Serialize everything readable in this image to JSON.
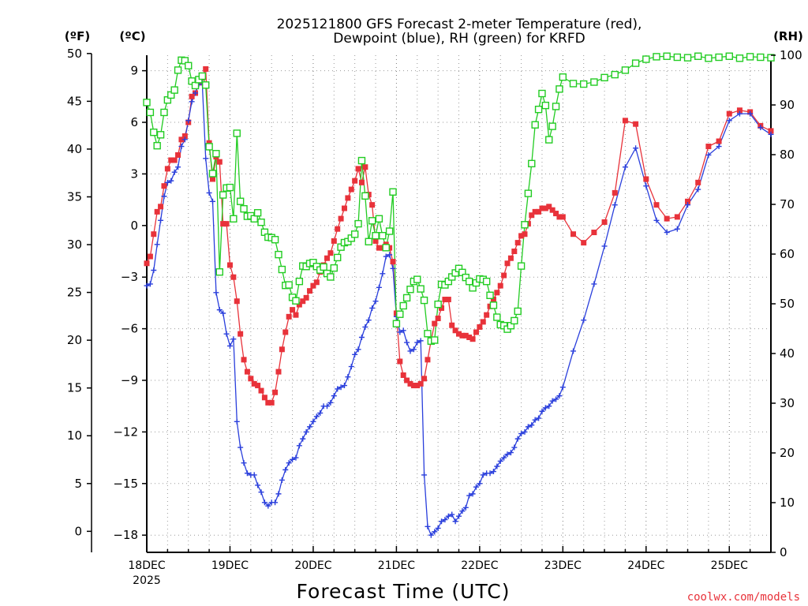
{
  "chart_data": {
    "type": "line",
    "title_line1": "2025121800 GFS Forecast 2-meter Temperature (red),",
    "title_line2": "Dewpoint (blue), RH (green) for KRFD",
    "unit_f": "(ºF)",
    "unit_c": "(ºC)",
    "unit_rh": "(RH)",
    "xlabel": "Forecast Time (UTC)",
    "credit": "coolwx.com/models",
    "x_unit": "hours since 2025-12-18 00Z",
    "xlim": [
      0,
      180
    ],
    "ylim_c": [
      -19,
      10
    ],
    "ylim_f": [
      -2.2,
      50
    ],
    "ylim_rh": [
      0,
      100
    ],
    "x_ticks": [
      {
        "hour": 0,
        "label": "18DEC",
        "sublabel": "2025"
      },
      {
        "hour": 24,
        "label": "19DEC",
        "sublabel": ""
      },
      {
        "hour": 48,
        "label": "20DEC",
        "sublabel": ""
      },
      {
        "hour": 72,
        "label": "21DEC",
        "sublabel": ""
      },
      {
        "hour": 96,
        "label": "22DEC",
        "sublabel": ""
      },
      {
        "hour": 120,
        "label": "23DEC",
        "sublabel": ""
      },
      {
        "hour": 144,
        "label": "24DEC",
        "sublabel": ""
      },
      {
        "hour": 168,
        "label": "25DEC",
        "sublabel": ""
      }
    ],
    "y_ticks_c": [
      {
        "v": 9,
        "label": "9"
      },
      {
        "v": 6,
        "label": "6"
      },
      {
        "v": 3,
        "label": "3"
      },
      {
        "v": 0,
        "label": "0"
      },
      {
        "v": -3,
        "label": "−3"
      },
      {
        "v": -6,
        "label": "−6"
      },
      {
        "v": -9,
        "label": "−9"
      },
      {
        "v": -12,
        "label": "−12"
      },
      {
        "v": -15,
        "label": "−15"
      },
      {
        "v": -18,
        "label": "−18"
      }
    ],
    "y_ticks_f": [
      {
        "v": 50,
        "label": "50"
      },
      {
        "v": 45,
        "label": "45"
      },
      {
        "v": 40,
        "label": "40"
      },
      {
        "v": 35,
        "label": "35"
      },
      {
        "v": 30,
        "label": "30"
      },
      {
        "v": 25,
        "label": "25"
      },
      {
        "v": 20,
        "label": "20"
      },
      {
        "v": 15,
        "label": "15"
      },
      {
        "v": 10,
        "label": "10"
      },
      {
        "v": 5,
        "label": "5"
      },
      {
        "v": 0,
        "label": "0"
      }
    ],
    "y_ticks_rh": [
      {
        "v": 100,
        "label": "100"
      },
      {
        "v": 90,
        "label": "90"
      },
      {
        "v": 80,
        "label": "80"
      },
      {
        "v": 70,
        "label": "70"
      },
      {
        "v": 60,
        "label": "60"
      },
      {
        "v": 50,
        "label": "50"
      },
      {
        "v": 40,
        "label": "40"
      },
      {
        "v": 30,
        "label": "30"
      },
      {
        "v": 20,
        "label": "20"
      },
      {
        "v": 10,
        "label": "10"
      },
      {
        "v": 0,
        "label": "0"
      }
    ],
    "series": [
      {
        "name": "2-meter Temperature (°C)",
        "axis": "c",
        "color": "#e8323a",
        "marker": "square-filled",
        "x": [
          0,
          1,
          2,
          3,
          4,
          5,
          6,
          7,
          8,
          9,
          10,
          11,
          12,
          13,
          14,
          15,
          16,
          17,
          18,
          19,
          20,
          21,
          22,
          23,
          24,
          25,
          26,
          27,
          28,
          29,
          30,
          31,
          32,
          33,
          34,
          35,
          36,
          37,
          38,
          39,
          40,
          41,
          42,
          43,
          44,
          45,
          46,
          47,
          48,
          49,
          50,
          51,
          52,
          53,
          54,
          55,
          56,
          57,
          58,
          59,
          60,
          61,
          62,
          63,
          64,
          65,
          66,
          67,
          68,
          69,
          70,
          71,
          72,
          73,
          74,
          75,
          76,
          77,
          78,
          79,
          80,
          81,
          82,
          83,
          84,
          85,
          86,
          87,
          88,
          89,
          90,
          91,
          92,
          93,
          94,
          95,
          96,
          97,
          98,
          99,
          100,
          101,
          102,
          103,
          104,
          105,
          106,
          107,
          108,
          109,
          110,
          111,
          112,
          113,
          114,
          115,
          116,
          117,
          118,
          119,
          120,
          123,
          126,
          129,
          132,
          135,
          138,
          141,
          144,
          147,
          150,
          153,
          156,
          159,
          162,
          165,
          168,
          171,
          174,
          177,
          180
        ],
        "values": [
          -2.2,
          -1.8,
          -0.5,
          0.8,
          1.1,
          2.3,
          3.3,
          3.8,
          3.8,
          4.1,
          5,
          5.2,
          6,
          7.5,
          7.7,
          8.3,
          8.6,
          9.1,
          4.8,
          2.7,
          4,
          3.7,
          0.1,
          0.1,
          -2.3,
          -3,
          -4.4,
          -6.3,
          -7.8,
          -8.5,
          -8.9,
          -9.2,
          -9.3,
          -9.6,
          -10,
          -10.3,
          -10.3,
          -9.7,
          -8.5,
          -7.2,
          -6.2,
          -5.3,
          -4.9,
          -5.2,
          -4.6,
          -4.4,
          -4.2,
          -3.8,
          -3.5,
          -3.3,
          -2.7,
          -2.3,
          -1.9,
          -1.6,
          -0.9,
          -0.2,
          0.4,
          1,
          1.6,
          2.1,
          2.6,
          3.3,
          2.5,
          3.4,
          1.8,
          1.2,
          -0.9,
          -1.3,
          -1.3,
          -1.1,
          -1.3,
          -2.1,
          -5.1,
          -7.9,
          -8.7,
          -9,
          -9.2,
          -9.3,
          -9.3,
          -9.2,
          -8.9,
          -7.8,
          -6.7,
          -5.7,
          -5.4,
          -4.8,
          -4.3,
          -4.3,
          -5.8,
          -6.1,
          -6.3,
          -6.4,
          -6.4,
          -6.5,
          -6.6,
          -6.2,
          -5.9,
          -5.6,
          -5.2,
          -4.7,
          -4.3,
          -3.9,
          -3.5,
          -2.9,
          -2.2,
          -1.9,
          -1.5,
          -1,
          -0.6,
          -0.5,
          0.1,
          0.6,
          0.8,
          0.8,
          1,
          1,
          1.1,
          0.9,
          0.7,
          0.5,
          0.5,
          -0.5,
          -1,
          -0.4,
          0.2,
          1.9,
          6.1,
          5.9,
          2.7,
          1.2,
          0.4,
          0.5,
          1.4,
          2.5,
          4.6,
          4.9,
          6.5,
          6.7,
          6.6,
          5.8,
          5.5
        ]
      },
      {
        "name": "Dewpoint (°C)",
        "axis": "c",
        "color": "#2a3fdc",
        "marker": "plus",
        "x": [
          0,
          1,
          2,
          3,
          4,
          5,
          6,
          7,
          8,
          9,
          10,
          11,
          12,
          13,
          14,
          15,
          16,
          17,
          18,
          19,
          20,
          21,
          22,
          23,
          24,
          25,
          26,
          27,
          28,
          29,
          30,
          31,
          32,
          33,
          34,
          35,
          36,
          37,
          38,
          39,
          40,
          41,
          42,
          43,
          44,
          45,
          46,
          47,
          48,
          49,
          50,
          51,
          52,
          53,
          54,
          55,
          56,
          57,
          58,
          59,
          60,
          61,
          62,
          63,
          64,
          65,
          66,
          67,
          68,
          69,
          70,
          71,
          72,
          73,
          74,
          75,
          76,
          77,
          78,
          79,
          80,
          81,
          82,
          83,
          84,
          85,
          86,
          87,
          88,
          89,
          90,
          91,
          92,
          93,
          94,
          95,
          96,
          97,
          98,
          99,
          100,
          101,
          102,
          103,
          104,
          105,
          106,
          107,
          108,
          109,
          110,
          111,
          112,
          113,
          114,
          115,
          116,
          117,
          118,
          119,
          120,
          123,
          126,
          129,
          132,
          135,
          138,
          141,
          144,
          147,
          150,
          153,
          156,
          159,
          162,
          165,
          168,
          171,
          174,
          177,
          180
        ],
        "values": [
          -3.5,
          -3.4,
          -2.6,
          -1.1,
          0.3,
          1.7,
          2.5,
          2.6,
          3.1,
          3.4,
          4.6,
          5,
          6.1,
          7.2,
          7.7,
          8.2,
          8.3,
          3.9,
          1.9,
          1.4,
          -3.9,
          -4.9,
          -5.1,
          -6.3,
          -7,
          -6.6,
          -11.4,
          -12.9,
          -13.8,
          -14.4,
          -14.5,
          -14.5,
          -15.1,
          -15.5,
          -16.1,
          -16.3,
          -16.1,
          -16.1,
          -15.6,
          -14.8,
          -14.2,
          -13.8,
          -13.6,
          -13.5,
          -12.8,
          -12.4,
          -12,
          -11.7,
          -11.4,
          -11.1,
          -10.9,
          -10.5,
          -10.5,
          -10.3,
          -9.9,
          -9.5,
          -9.4,
          -9.3,
          -8.8,
          -8.2,
          -7.5,
          -7.2,
          -6.5,
          -5.9,
          -5.5,
          -4.8,
          -4.4,
          -3.6,
          -2.8,
          -1.8,
          -1.7,
          -2.5,
          -5.3,
          -6.2,
          -6.1,
          -6.8,
          -7.3,
          -7.2,
          -6.8,
          -6.7,
          -14.5,
          -17.5,
          -18,
          -17.8,
          -17.6,
          -17.2,
          -17.1,
          -16.9,
          -16.8,
          -17.2,
          -16.9,
          -16.6,
          -16.4,
          -15.7,
          -15.6,
          -15.2,
          -15,
          -14.5,
          -14.4,
          -14.4,
          -14.3,
          -14,
          -13.7,
          -13.5,
          -13.3,
          -13.2,
          -12.9,
          -12.4,
          -12.1,
          -12,
          -11.7,
          -11.6,
          -11.3,
          -11.2,
          -10.8,
          -10.6,
          -10.5,
          -10.2,
          -10.1,
          -9.9,
          -9.4,
          -7.3,
          -5.5,
          -3.4,
          -1.2,
          1.2,
          3.4,
          4.5,
          2.3,
          0.3,
          -0.4,
          -0.2,
          1.2,
          2.1,
          4.1,
          4.6,
          6.1,
          6.5,
          6.5,
          5.7,
          5.3
        ]
      },
      {
        "name": "Relative Humidity (%)",
        "axis": "rh",
        "color": "#22cc22",
        "marker": "square-open",
        "x": [
          0,
          1,
          2,
          3,
          4,
          5,
          6,
          7,
          8,
          9,
          10,
          11,
          12,
          13,
          14,
          15,
          16,
          17,
          18,
          19,
          20,
          21,
          22,
          23,
          24,
          25,
          26,
          27,
          28,
          29,
          30,
          31,
          32,
          33,
          34,
          35,
          36,
          37,
          38,
          39,
          40,
          41,
          42,
          43,
          44,
          45,
          46,
          47,
          48,
          49,
          50,
          51,
          52,
          53,
          54,
          55,
          56,
          57,
          58,
          59,
          60,
          61,
          62,
          63,
          64,
          65,
          66,
          67,
          68,
          69,
          70,
          71,
          72,
          73,
          74,
          75,
          76,
          77,
          78,
          79,
          80,
          81,
          82,
          83,
          84,
          85,
          86,
          87,
          88,
          89,
          90,
          91,
          92,
          93,
          94,
          95,
          96,
          97,
          98,
          99,
          100,
          101,
          102,
          103,
          104,
          105,
          106,
          107,
          108,
          109,
          110,
          111,
          112,
          113,
          114,
          115,
          116,
          117,
          118,
          119,
          120,
          123,
          126,
          129,
          132,
          135,
          138,
          141,
          144,
          147,
          150,
          153,
          156,
          159,
          162,
          165,
          168,
          171,
          174,
          177,
          180
        ],
        "values": [
          90.5,
          88.5,
          84.5,
          81.8,
          84,
          88.5,
          91,
          92,
          93,
          97,
          99,
          98.9,
          97.9,
          94.8,
          93.9,
          95.1,
          95.8,
          94,
          81.6,
          76.2,
          80.2,
          56.4,
          71.9,
          73.3,
          73.4,
          67.1,
          84.3,
          70.6,
          69.1,
          67.6,
          67.7,
          67.1,
          68.3,
          66.4,
          64.4,
          63.4,
          63.3,
          62.9,
          59.9,
          56.9,
          53.7,
          53.8,
          51.3,
          50.6,
          54.5,
          57.6,
          57.5,
          58.1,
          58.3,
          57.5,
          56.8,
          57.4,
          56.1,
          55.4,
          57.2,
          59.3,
          61.4,
          62.3,
          62.5,
          63.2,
          64,
          66.1,
          78.8,
          71.7,
          62.5,
          66.7,
          63.7,
          67.1,
          63.7,
          61.3,
          64.6,
          72.5,
          46,
          47.9,
          49.6,
          51.2,
          52.9,
          54.5,
          54.9,
          53,
          50.7,
          44,
          42.5,
          42.7,
          49.9,
          53.9,
          53.8,
          54.5,
          55.4,
          56.2,
          57.1,
          56.3,
          55.3,
          54.5,
          53.2,
          54.2,
          55,
          54.9,
          54.5,
          51.7,
          49.7,
          47.3,
          45.8,
          45.6,
          44.9,
          45.6,
          46.6,
          48.5,
          57.6,
          65.9,
          72.2,
          78.2,
          86,
          89.1,
          92.3,
          89.9,
          83,
          85.7,
          89.7,
          93.2,
          95.6,
          94.3,
          94.2,
          94.6,
          95.5,
          96.1,
          97,
          98.4,
          99.2,
          99.7,
          99.8,
          99.6,
          99.5,
          99.8,
          99.4,
          99.6,
          99.8,
          99.4,
          99.7,
          99.6,
          99.5
        ]
      }
    ]
  }
}
